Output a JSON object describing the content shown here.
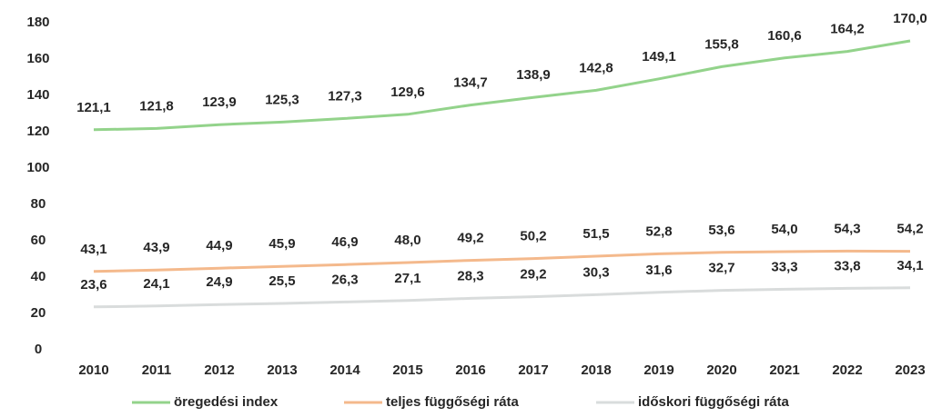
{
  "chart_data": {
    "type": "line",
    "categories": [
      "2010",
      "2011",
      "2012",
      "2013",
      "2014",
      "2015",
      "2016",
      "2017",
      "2018",
      "2019",
      "2020",
      "2021",
      "2022",
      "2023"
    ],
    "ylim": [
      0,
      180
    ],
    "yticks": [
      0,
      20,
      40,
      60,
      80,
      100,
      120,
      140,
      160,
      180
    ],
    "grid": false,
    "legend": "bottom",
    "series": [
      {
        "name": "öregedési index",
        "color": "#93d38b",
        "values": [
          121.1,
          121.8,
          123.9,
          125.3,
          127.3,
          129.6,
          134.7,
          138.9,
          142.8,
          149.1,
          155.8,
          160.6,
          164.2,
          170.0
        ],
        "value_labels": [
          "121,1",
          "121,8",
          "123,9",
          "125,3",
          "127,3",
          "129,6",
          "134,7",
          "138,9",
          "142,8",
          "149,1",
          "155,8",
          "160,6",
          "164,2",
          "170,0"
        ]
      },
      {
        "name": "teljes függőségi ráta",
        "color": "#f4b98c",
        "values": [
          43.1,
          43.9,
          44.9,
          45.9,
          46.9,
          48.0,
          49.2,
          50.2,
          51.5,
          52.8,
          53.6,
          54.0,
          54.3,
          54.2
        ],
        "value_labels": [
          "43,1",
          "43,9",
          "44,9",
          "45,9",
          "46,9",
          "48,0",
          "49,2",
          "50,2",
          "51,5",
          "52,8",
          "53,6",
          "54,0",
          "54,3",
          "54,2"
        ]
      },
      {
        "name": "időskori függőségi ráta",
        "color": "#d9dcdc",
        "values": [
          23.6,
          24.1,
          24.9,
          25.5,
          26.3,
          27.1,
          28.3,
          29.2,
          30.3,
          31.6,
          32.7,
          33.3,
          33.8,
          34.1
        ],
        "value_labels": [
          "23,6",
          "24,1",
          "24,9",
          "25,5",
          "26,3",
          "27,1",
          "28,3",
          "29,2",
          "30,3",
          "31,6",
          "32,7",
          "33,3",
          "33,8",
          "34,1"
        ]
      }
    ]
  }
}
